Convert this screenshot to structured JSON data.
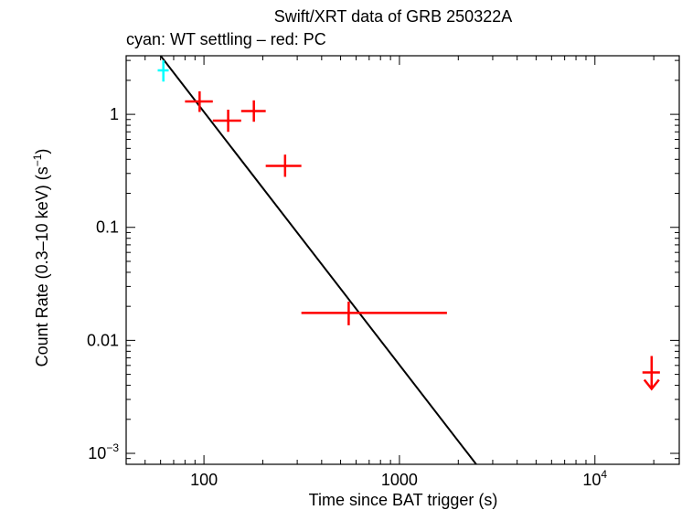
{
  "chart_data": {
    "type": "scatter",
    "title": "Swift/XRT data of GRB 250322A",
    "subtitle": "cyan: WT settling – red: PC",
    "xlabel": "Time since BAT trigger (s)",
    "ylabel_main": "Count Rate (0.3–10 keV) (s",
    "ylabel_sup": "−1",
    "ylabel_end": ")",
    "xscale": "log",
    "yscale": "log",
    "xlim": [
      40,
      27000
    ],
    "ylim": [
      0.0008,
      3.3
    ],
    "x_ticks": [
      {
        "value": 100,
        "label": "100"
      },
      {
        "value": 1000,
        "label": "1000"
      },
      {
        "value": 10000,
        "label": "10",
        "sup": "4"
      }
    ],
    "y_ticks": [
      {
        "value": 0.001,
        "label": "10",
        "sup": "−3"
      },
      {
        "value": 0.01,
        "label": "0.01"
      },
      {
        "value": 0.1,
        "label": "0.1"
      },
      {
        "value": 1,
        "label": "1"
      }
    ],
    "series": [
      {
        "name": "WT settling",
        "color": "#00ffff",
        "points": [
          {
            "x": 62,
            "xlo": 58,
            "xhi": 66,
            "y": 2.45,
            "ylo": 1.95,
            "yhi": 3.0
          }
        ]
      },
      {
        "name": "PC",
        "color": "#ff0000",
        "points": [
          {
            "x": 95,
            "xlo": 80,
            "xhi": 111,
            "y": 1.3,
            "ylo": 1.05,
            "yhi": 1.6
          },
          {
            "x": 133,
            "xlo": 111,
            "xhi": 155,
            "y": 0.88,
            "ylo": 0.7,
            "yhi": 1.1
          },
          {
            "x": 180,
            "xlo": 155,
            "xhi": 207,
            "y": 1.07,
            "ylo": 0.86,
            "yhi": 1.33
          },
          {
            "x": 260,
            "xlo": 207,
            "xhi": 315,
            "y": 0.35,
            "ylo": 0.28,
            "yhi": 0.44
          },
          {
            "x": 550,
            "xlo": 315,
            "xhi": 1750,
            "y": 0.0175,
            "ylo": 0.0136,
            "yhi": 0.022
          }
        ]
      }
    ],
    "upper_limits": [
      {
        "x": 19500,
        "xlo": 17500,
        "xhi": 21500,
        "y": 0.0052,
        "color": "#ff0000"
      }
    ],
    "model_line": {
      "color": "#000000",
      "points": [
        {
          "x": 60,
          "y": 3.3
        },
        {
          "x": 2470,
          "y": 0.0008
        }
      ]
    }
  }
}
